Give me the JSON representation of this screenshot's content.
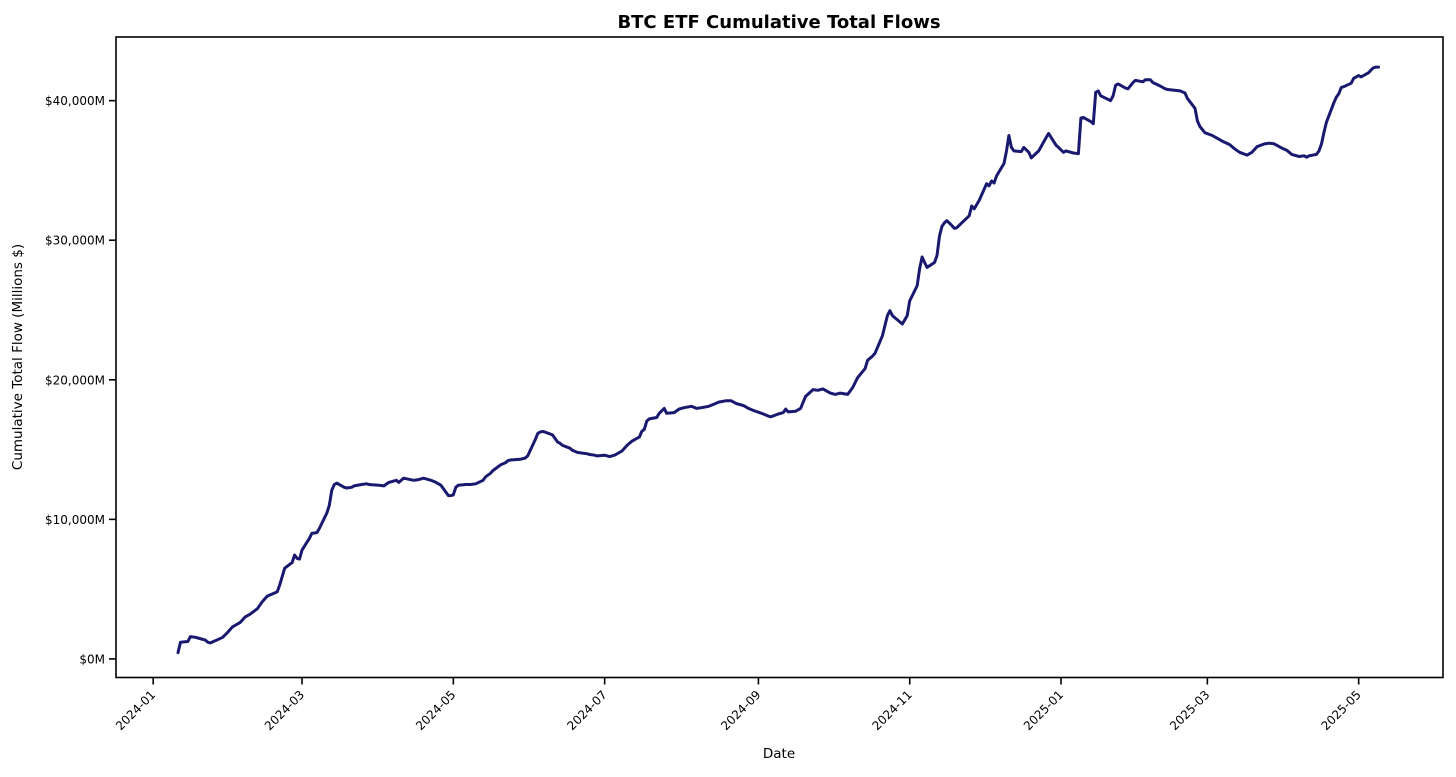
{
  "chart_data": {
    "type": "line",
    "title": "BTC ETF Cumulative Total Flows",
    "xlabel": "Date",
    "ylabel": "Cumulative Total Flow (Millions $)",
    "line_color": "#191970",
    "line_width": 3,
    "grid": false,
    "legend": null,
    "x_range": [
      "2023-12-17",
      "2025-06-04"
    ],
    "y_range": [
      -1330,
      44560
    ],
    "y_ticks": [
      {
        "value": 0,
        "label": "$0M"
      },
      {
        "value": 10000,
        "label": "$10,000M"
      },
      {
        "value": 20000,
        "label": "$20,000M"
      },
      {
        "value": 30000,
        "label": "$30,000M"
      },
      {
        "value": 40000,
        "label": "$40,000M"
      }
    ],
    "x_ticks": [
      {
        "month": "2024-01",
        "label": "2024-01"
      },
      {
        "month": "2024-03",
        "label": "2024-03"
      },
      {
        "month": "2024-05",
        "label": "2024-05"
      },
      {
        "month": "2024-07",
        "label": "2024-07"
      },
      {
        "month": "2024-09",
        "label": "2024-09"
      },
      {
        "month": "2024-11",
        "label": "2024-11"
      },
      {
        "month": "2025-01",
        "label": "2025-01"
      },
      {
        "month": "2025-03",
        "label": "2025-03"
      },
      {
        "month": "2025-05",
        "label": "2025-05"
      }
    ],
    "series": [
      {
        "name": "Cumulative Total Flow",
        "points": [
          [
            "2024-01-11",
            450
          ],
          [
            "2024-01-12",
            1200
          ],
          [
            "2024-01-15",
            1250
          ],
          [
            "2024-01-16",
            1600
          ],
          [
            "2024-01-18",
            1550
          ],
          [
            "2024-01-19",
            1500
          ],
          [
            "2024-01-22",
            1350
          ],
          [
            "2024-01-23",
            1200
          ],
          [
            "2024-01-24",
            1150
          ],
          [
            "2024-01-26",
            1300
          ],
          [
            "2024-01-29",
            1550
          ],
          [
            "2024-01-31",
            1900
          ],
          [
            "2024-02-02",
            2300
          ],
          [
            "2024-02-05",
            2600
          ],
          [
            "2024-02-07",
            3000
          ],
          [
            "2024-02-09",
            3200
          ],
          [
            "2024-02-12",
            3600
          ],
          [
            "2024-02-14",
            4100
          ],
          [
            "2024-02-15",
            4300
          ],
          [
            "2024-02-16",
            4500
          ],
          [
            "2024-02-20",
            4800
          ],
          [
            "2024-02-21",
            5300
          ],
          [
            "2024-02-22",
            5900
          ],
          [
            "2024-02-23",
            6500
          ],
          [
            "2024-02-26",
            6900
          ],
          [
            "2024-02-27",
            7450
          ],
          [
            "2024-02-28",
            7200
          ],
          [
            "2024-02-29",
            7150
          ],
          [
            "2024-03-01",
            7800
          ],
          [
            "2024-03-04",
            8650
          ],
          [
            "2024-03-05",
            9000
          ],
          [
            "2024-03-07",
            9050
          ],
          [
            "2024-03-08",
            9350
          ],
          [
            "2024-03-11",
            10450
          ],
          [
            "2024-03-12",
            11000
          ],
          [
            "2024-03-13",
            12100
          ],
          [
            "2024-03-14",
            12500
          ],
          [
            "2024-03-15",
            12600
          ],
          [
            "2024-03-18",
            12300
          ],
          [
            "2024-03-19",
            12250
          ],
          [
            "2024-03-21",
            12300
          ],
          [
            "2024-03-22",
            12400
          ],
          [
            "2024-03-25",
            12500
          ],
          [
            "2024-03-27",
            12550
          ],
          [
            "2024-03-28",
            12500
          ],
          [
            "2024-04-01",
            12450
          ],
          [
            "2024-04-03",
            12400
          ],
          [
            "2024-04-05",
            12650
          ],
          [
            "2024-04-08",
            12800
          ],
          [
            "2024-04-09",
            12650
          ],
          [
            "2024-04-11",
            12950
          ],
          [
            "2024-04-15",
            12800
          ],
          [
            "2024-04-17",
            12850
          ],
          [
            "2024-04-19",
            12950
          ],
          [
            "2024-04-22",
            12800
          ],
          [
            "2024-04-24",
            12650
          ],
          [
            "2024-04-26",
            12450
          ],
          [
            "2024-04-29",
            11700
          ],
          [
            "2024-04-30",
            11700
          ],
          [
            "2024-05-01",
            11750
          ],
          [
            "2024-05-02",
            12300
          ],
          [
            "2024-05-03",
            12450
          ],
          [
            "2024-05-06",
            12500
          ],
          [
            "2024-05-08",
            12500
          ],
          [
            "2024-05-10",
            12550
          ],
          [
            "2024-05-13",
            12800
          ],
          [
            "2024-05-14",
            13050
          ],
          [
            "2024-05-16",
            13300
          ],
          [
            "2024-05-17",
            13500
          ],
          [
            "2024-05-20",
            13900
          ],
          [
            "2024-05-22",
            14050
          ],
          [
            "2024-05-23",
            14200
          ],
          [
            "2024-05-24",
            14250
          ],
          [
            "2024-05-28",
            14300
          ],
          [
            "2024-05-30",
            14400
          ],
          [
            "2024-05-31",
            14550
          ],
          [
            "2024-06-03",
            15700
          ],
          [
            "2024-06-04",
            16150
          ],
          [
            "2024-06-05",
            16250
          ],
          [
            "2024-06-06",
            16300
          ],
          [
            "2024-06-07",
            16250
          ],
          [
            "2024-06-10",
            16050
          ],
          [
            "2024-06-11",
            15800
          ],
          [
            "2024-06-12",
            15550
          ],
          [
            "2024-06-13",
            15450
          ],
          [
            "2024-06-14",
            15300
          ],
          [
            "2024-06-17",
            15100
          ],
          [
            "2024-06-18",
            14950
          ],
          [
            "2024-06-20",
            14800
          ],
          [
            "2024-06-24",
            14700
          ],
          [
            "2024-06-25",
            14650
          ],
          [
            "2024-06-27",
            14600
          ],
          [
            "2024-06-28",
            14550
          ],
          [
            "2024-07-01",
            14600
          ],
          [
            "2024-07-03",
            14500
          ],
          [
            "2024-07-05",
            14600
          ],
          [
            "2024-07-08",
            14900
          ],
          [
            "2024-07-10",
            15300
          ],
          [
            "2024-07-12",
            15600
          ],
          [
            "2024-07-15",
            15900
          ],
          [
            "2024-07-16",
            16300
          ],
          [
            "2024-07-17",
            16450
          ],
          [
            "2024-07-18",
            17050
          ],
          [
            "2024-07-19",
            17200
          ],
          [
            "2024-07-22",
            17300
          ],
          [
            "2024-07-23",
            17600
          ],
          [
            "2024-07-25",
            17950
          ],
          [
            "2024-07-26",
            17600
          ],
          [
            "2024-07-29",
            17650
          ],
          [
            "2024-07-31",
            17900
          ],
          [
            "2024-08-02",
            18000
          ],
          [
            "2024-08-05",
            18100
          ],
          [
            "2024-08-07",
            17950
          ],
          [
            "2024-08-09",
            18000
          ],
          [
            "2024-08-12",
            18100
          ],
          [
            "2024-08-14",
            18250
          ],
          [
            "2024-08-16",
            18400
          ],
          [
            "2024-08-19",
            18500
          ],
          [
            "2024-08-21",
            18500
          ],
          [
            "2024-08-23",
            18300
          ],
          [
            "2024-08-26",
            18150
          ],
          [
            "2024-08-28",
            17950
          ],
          [
            "2024-08-30",
            17800
          ],
          [
            "2024-09-03",
            17550
          ],
          [
            "2024-09-05",
            17400
          ],
          [
            "2024-09-06",
            17350
          ],
          [
            "2024-09-09",
            17550
          ],
          [
            "2024-09-11",
            17650
          ],
          [
            "2024-09-12",
            17900
          ],
          [
            "2024-09-13",
            17700
          ],
          [
            "2024-09-16",
            17750
          ],
          [
            "2024-09-18",
            17950
          ],
          [
            "2024-09-20",
            18800
          ],
          [
            "2024-09-23",
            19300
          ],
          [
            "2024-09-25",
            19250
          ],
          [
            "2024-09-27",
            19350
          ],
          [
            "2024-09-30",
            19050
          ],
          [
            "2024-10-02",
            18950
          ],
          [
            "2024-10-04",
            19050
          ],
          [
            "2024-10-07",
            18950
          ],
          [
            "2024-10-09",
            19450
          ],
          [
            "2024-10-11",
            20150
          ],
          [
            "2024-10-14",
            20800
          ],
          [
            "2024-10-15",
            21400
          ],
          [
            "2024-10-17",
            21700
          ],
          [
            "2024-10-18",
            21900
          ],
          [
            "2024-10-21",
            23150
          ],
          [
            "2024-10-23",
            24600
          ],
          [
            "2024-10-24",
            24950
          ],
          [
            "2024-10-25",
            24600
          ],
          [
            "2024-10-28",
            24150
          ],
          [
            "2024-10-29",
            24000
          ],
          [
            "2024-10-30",
            24300
          ],
          [
            "2024-10-31",
            24600
          ],
          [
            "2024-11-01",
            25650
          ],
          [
            "2024-11-04",
            26750
          ],
          [
            "2024-11-05",
            27950
          ],
          [
            "2024-11-06",
            28800
          ],
          [
            "2024-11-07",
            28400
          ],
          [
            "2024-11-08",
            28050
          ],
          [
            "2024-11-11",
            28400
          ],
          [
            "2024-11-12",
            28900
          ],
          [
            "2024-11-13",
            30300
          ],
          [
            "2024-11-14",
            31000
          ],
          [
            "2024-11-15",
            31250
          ],
          [
            "2024-11-16",
            31400
          ],
          [
            "2024-11-18",
            31050
          ],
          [
            "2024-11-19",
            30850
          ],
          [
            "2024-11-20",
            30900
          ],
          [
            "2024-11-22",
            31250
          ],
          [
            "2024-11-25",
            31750
          ],
          [
            "2024-11-26",
            32450
          ],
          [
            "2024-11-27",
            32250
          ],
          [
            "2024-11-29",
            32850
          ],
          [
            "2024-12-02",
            34050
          ],
          [
            "2024-12-03",
            33900
          ],
          [
            "2024-12-04",
            34250
          ],
          [
            "2024-12-05",
            34100
          ],
          [
            "2024-12-06",
            34600
          ],
          [
            "2024-12-09",
            35500
          ],
          [
            "2024-12-10",
            36400
          ],
          [
            "2024-12-11",
            37500
          ],
          [
            "2024-12-12",
            36650
          ],
          [
            "2024-12-13",
            36400
          ],
          [
            "2024-12-16",
            36350
          ],
          [
            "2024-12-17",
            36650
          ],
          [
            "2024-12-19",
            36300
          ],
          [
            "2024-12-20",
            35900
          ],
          [
            "2024-12-23",
            36400
          ],
          [
            "2024-12-26",
            37350
          ],
          [
            "2024-12-27",
            37650
          ],
          [
            "2024-12-30",
            36800
          ],
          [
            "2024-12-31",
            36650
          ],
          [
            "2025-01-02",
            36300
          ],
          [
            "2025-01-03",
            36400
          ],
          [
            "2025-01-06",
            36250
          ],
          [
            "2025-01-08",
            36200
          ],
          [
            "2025-01-09",
            38750
          ],
          [
            "2025-01-10",
            38800
          ],
          [
            "2025-01-13",
            38500
          ],
          [
            "2025-01-14",
            38350
          ],
          [
            "2025-01-15",
            40600
          ],
          [
            "2025-01-16",
            40700
          ],
          [
            "2025-01-17",
            40350
          ],
          [
            "2025-01-21",
            40000
          ],
          [
            "2025-01-22",
            40350
          ],
          [
            "2025-01-23",
            41100
          ],
          [
            "2025-01-24",
            41200
          ],
          [
            "2025-01-27",
            40900
          ],
          [
            "2025-01-28",
            40850
          ],
          [
            "2025-01-30",
            41300
          ],
          [
            "2025-01-31",
            41450
          ],
          [
            "2025-02-03",
            41350
          ],
          [
            "2025-02-04",
            41500
          ],
          [
            "2025-02-06",
            41500
          ],
          [
            "2025-02-07",
            41300
          ],
          [
            "2025-02-10",
            41050
          ],
          [
            "2025-02-12",
            40850
          ],
          [
            "2025-02-13",
            40800
          ],
          [
            "2025-02-18",
            40700
          ],
          [
            "2025-02-20",
            40550
          ],
          [
            "2025-02-21",
            40150
          ],
          [
            "2025-02-24",
            39450
          ],
          [
            "2025-02-25",
            38550
          ],
          [
            "2025-02-26",
            38150
          ],
          [
            "2025-02-28",
            37700
          ],
          [
            "2025-03-03",
            37500
          ],
          [
            "2025-03-05",
            37300
          ],
          [
            "2025-03-07",
            37100
          ],
          [
            "2025-03-10",
            36850
          ],
          [
            "2025-03-12",
            36550
          ],
          [
            "2025-03-14",
            36300
          ],
          [
            "2025-03-17",
            36100
          ],
          [
            "2025-03-19",
            36300
          ],
          [
            "2025-03-21",
            36700
          ],
          [
            "2025-03-24",
            36900
          ],
          [
            "2025-03-26",
            36950
          ],
          [
            "2025-03-28",
            36900
          ],
          [
            "2025-03-31",
            36600
          ],
          [
            "2025-04-02",
            36450
          ],
          [
            "2025-04-04",
            36150
          ],
          [
            "2025-04-07",
            36000
          ],
          [
            "2025-04-09",
            36050
          ],
          [
            "2025-04-10",
            35950
          ],
          [
            "2025-04-11",
            36050
          ],
          [
            "2025-04-14",
            36150
          ],
          [
            "2025-04-15",
            36400
          ],
          [
            "2025-04-16",
            36900
          ],
          [
            "2025-04-17",
            37700
          ],
          [
            "2025-04-18",
            38450
          ],
          [
            "2025-04-21",
            39850
          ],
          [
            "2025-04-22",
            40250
          ],
          [
            "2025-04-23",
            40500
          ],
          [
            "2025-04-24",
            40950
          ],
          [
            "2025-04-25",
            41000
          ],
          [
            "2025-04-28",
            41250
          ],
          [
            "2025-04-29",
            41600
          ],
          [
            "2025-04-30",
            41700
          ],
          [
            "2025-05-01",
            41800
          ],
          [
            "2025-05-02",
            41700
          ],
          [
            "2025-05-05",
            42000
          ],
          [
            "2025-05-06",
            42200
          ],
          [
            "2025-05-07",
            42350
          ],
          [
            "2025-05-08",
            42400
          ],
          [
            "2025-05-09",
            42400
          ]
        ]
      }
    ]
  }
}
